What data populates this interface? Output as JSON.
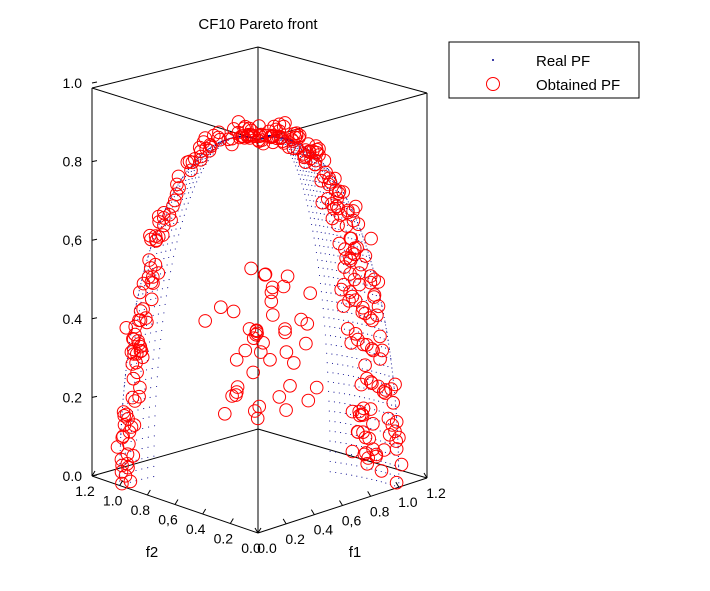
{
  "chart_data": {
    "type": "scatter",
    "projection": "3d",
    "title": "CF10 Pareto front",
    "xlabel": "f1",
    "ylabel": "f2",
    "zlabel": "",
    "x_ticks": [
      "0.0",
      "0.2",
      "0.4",
      "0,6",
      "0.8",
      "1.0",
      "1.2"
    ],
    "y_ticks": [
      "1.2",
      "1.0",
      "0.8",
      "0,6",
      "0.4",
      "0.2",
      "0.0"
    ],
    "z_ticks": [
      "0.0",
      "0.2",
      "0.4",
      "0,6",
      "0.8",
      "1.0"
    ],
    "xlim": [
      0,
      1.2
    ],
    "ylim": [
      0,
      1.2
    ],
    "zlim": [
      0,
      1
    ],
    "grid": false,
    "legend_position": "top-right",
    "series": [
      {
        "name": "Real PF",
        "marker": "dot",
        "color": "#00008b",
        "description_of_shape": "f1^2 + f2^2 + f3^2 = 1 with a central band removed",
        "sample_points": [
          [
            0.0,
            0.97,
            0.24
          ],
          [
            0.0,
            0.9,
            0.43
          ],
          [
            0.0,
            0.8,
            0.6
          ],
          [
            0.0,
            0.6,
            0.8
          ],
          [
            0.0,
            0.4,
            0.92
          ],
          [
            0.0,
            0.2,
            0.98
          ],
          [
            0.0,
            0.0,
            1.0
          ],
          [
            0.2,
            0.0,
            0.98
          ],
          [
            0.4,
            0.0,
            0.92
          ],
          [
            0.6,
            0.0,
            0.8
          ],
          [
            0.8,
            0.0,
            0.6
          ],
          [
            0.9,
            0.0,
            0.43
          ],
          [
            0.97,
            0.0,
            0.24
          ],
          [
            1.0,
            0.0,
            0.0
          ]
        ]
      },
      {
        "name": "Obtained PF",
        "marker": "open-circle",
        "color": "#ff0000",
        "sample_points": [
          [
            0.0,
            0.95,
            0.3
          ],
          [
            0.0,
            0.85,
            0.5
          ],
          [
            0.0,
            0.7,
            0.7
          ],
          [
            0.0,
            0.55,
            0.83
          ],
          [
            0.0,
            0.35,
            0.93
          ],
          [
            0.0,
            0.15,
            0.99
          ],
          [
            0.1,
            0.0,
            0.99
          ],
          [
            0.3,
            0.0,
            0.95
          ],
          [
            0.5,
            0.0,
            0.86
          ],
          [
            0.7,
            0.0,
            0.71
          ],
          [
            0.85,
            0.0,
            0.52
          ],
          [
            0.93,
            0.0,
            0.36
          ],
          [
            0.98,
            0.0,
            0.2
          ],
          [
            0.4,
            0.4,
            0.35
          ],
          [
            0.5,
            0.3,
            0.4
          ],
          [
            0.6,
            0.3,
            0.45
          ],
          [
            0.35,
            0.5,
            0.3
          ]
        ]
      }
    ]
  }
}
